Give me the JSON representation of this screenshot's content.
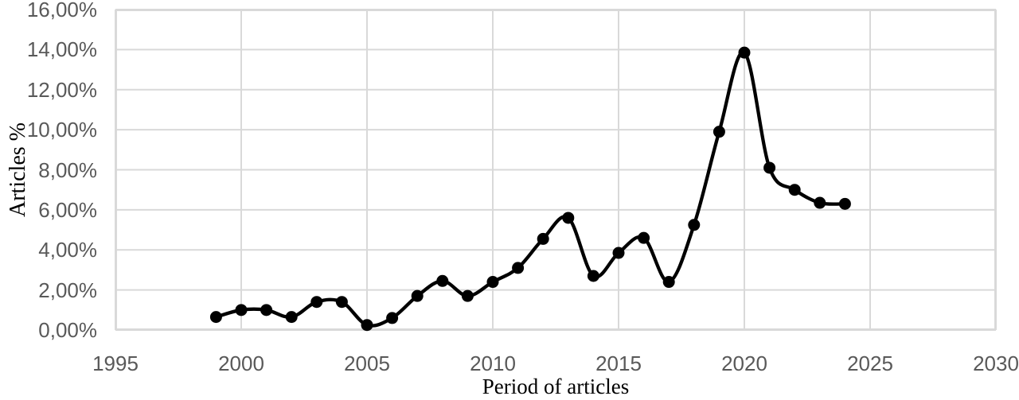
{
  "chart_data": {
    "type": "line",
    "title": "",
    "xlabel": "Period of articles",
    "ylabel": "Articles %",
    "series": [
      {
        "name": "Articles %",
        "x": [
          1999,
          2000,
          2001,
          2002,
          2003,
          2004,
          2005,
          2006,
          2007,
          2008,
          2009,
          2010,
          2011,
          2012,
          2013,
          2014,
          2015,
          2016,
          2017,
          2018,
          2019,
          2020,
          2021,
          2022,
          2023,
          2024
        ],
        "values": [
          0.65,
          1.0,
          1.0,
          0.65,
          1.4,
          1.4,
          0.25,
          0.6,
          1.7,
          2.45,
          1.7,
          2.4,
          3.1,
          4.55,
          5.6,
          2.7,
          3.85,
          4.6,
          2.4,
          5.25,
          9.9,
          13.85,
          8.1,
          7.0,
          6.35,
          6.3
        ]
      }
    ],
    "xlim": [
      1995,
      2030
    ],
    "ylim": [
      0,
      16
    ],
    "x_tick_values": [
      1995,
      2000,
      2005,
      2010,
      2015,
      2020,
      2025,
      2030
    ],
    "x_ticks": [
      "1995",
      "2000",
      "2005",
      "2010",
      "2015",
      "2020",
      "2025",
      "2030"
    ],
    "y_tick_values": [
      0,
      2,
      4,
      6,
      8,
      10,
      12,
      14,
      16
    ],
    "y_ticks": [
      "0,00%",
      "2,00%",
      "4,00%",
      "6,00%",
      "8,00%",
      "10,00%",
      "12,00%",
      "14,00%",
      "16,00%"
    ],
    "grid": true,
    "legend": "none",
    "smoothed_line": true,
    "marker": "circle",
    "colors": {
      "line": "#000000",
      "marker": "#000000",
      "gridline": "#d9d9d9",
      "plot_border": "#d9d9d9",
      "tick_label": "#595959",
      "axis_title": "#000000",
      "background": "#ffffff"
    }
  }
}
